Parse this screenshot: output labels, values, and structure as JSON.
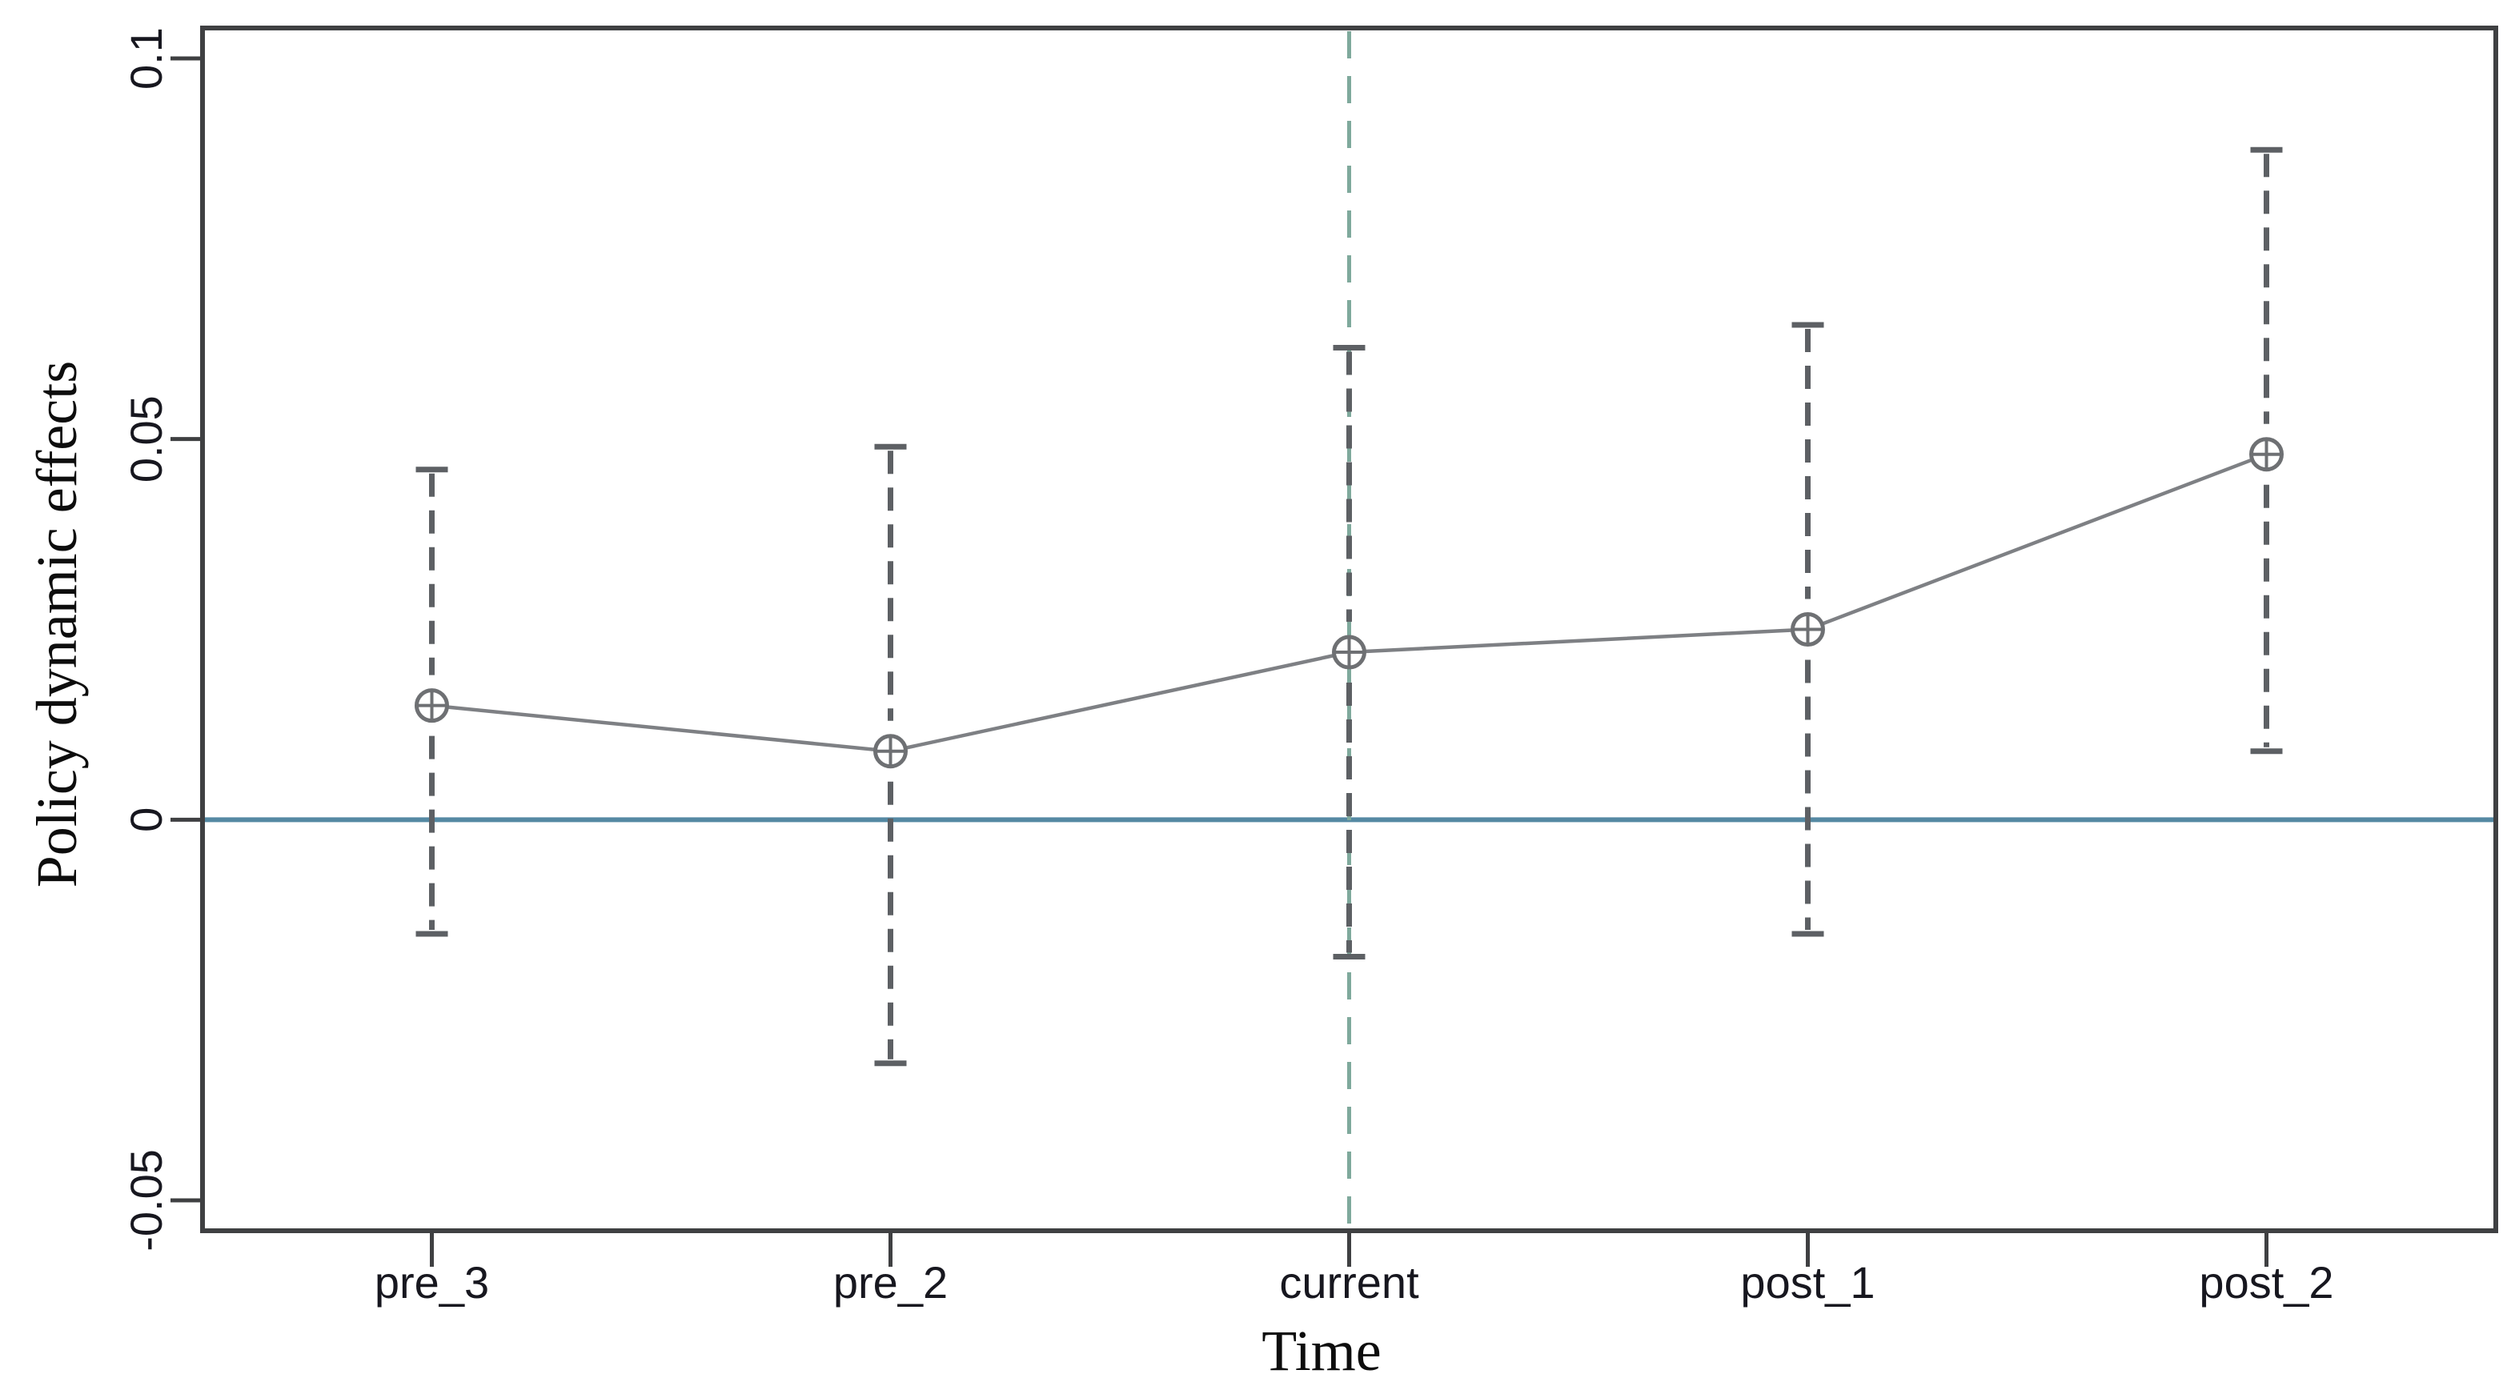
{
  "figure": {
    "background": "#ffffff"
  },
  "chart_data": {
    "type": "line",
    "subtype": "event-study-point-estimates-with-confidence-intervals",
    "title": "",
    "xlabel": "Time",
    "ylabel": "Policy dynamic effects",
    "categories": [
      "pre_3",
      "pre_2",
      "current",
      "post_1",
      "post_2"
    ],
    "series": [
      {
        "name": "Policy dynamic effects",
        "values": [
          0.015,
          0.009,
          0.022,
          0.025,
          0.048
        ],
        "ci_low": [
          -0.015,
          -0.032,
          -0.018,
          -0.015,
          0.009
        ],
        "ci_high": [
          0.046,
          0.049,
          0.062,
          0.065,
          0.088
        ]
      }
    ],
    "y_ticks": [
      {
        "value": -0.05,
        "label": "-0.05"
      },
      {
        "value": 0,
        "label": "0"
      },
      {
        "value": 0.05,
        "label": "0.05"
      },
      {
        "value": 0.1,
        "label": "0.1"
      }
    ],
    "ylim": [
      -0.054,
      0.104
    ],
    "grid": false,
    "legend": null,
    "marker": "circle-plus",
    "error_bar_style": "dashed-with-caps",
    "reference_lines": [
      {
        "id": "zero-line",
        "axis": "y",
        "at": 0,
        "style": "solid",
        "color": "#5589a3"
      },
      {
        "id": "event-line",
        "axis": "x",
        "at": "current",
        "style": "dashed",
        "color": "#7fa99c"
      }
    ],
    "colors": {
      "series_line": "#7e8084",
      "marker_stroke": "#6e7073",
      "marker_fill": "#ffffff",
      "error_bar": "#5d6064",
      "axis": "#3f4042",
      "tick_text": "#17171f",
      "axis_title_text": "#0d0d0d",
      "background": "#ffffff"
    }
  }
}
